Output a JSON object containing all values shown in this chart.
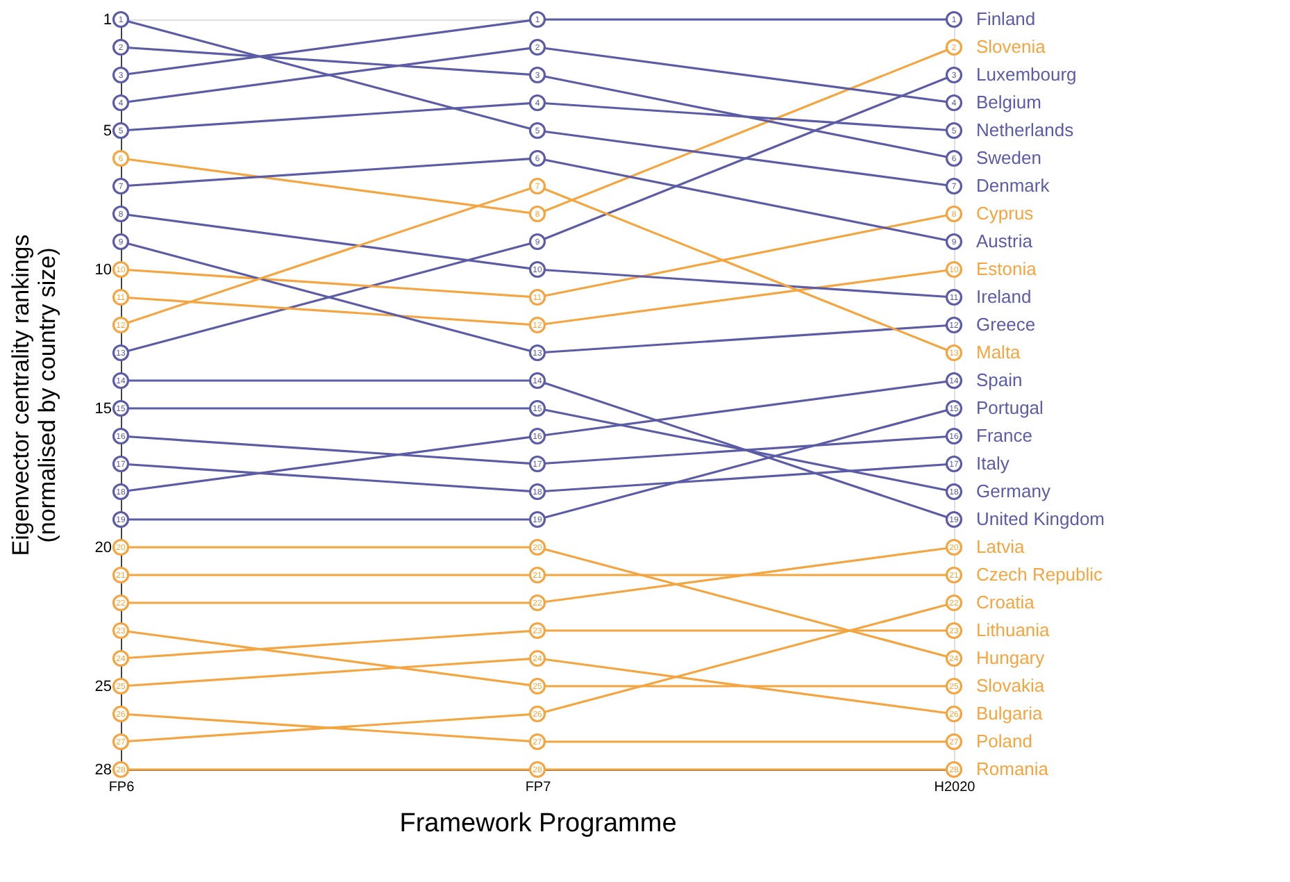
{
  "chart_data": {
    "type": "line",
    "xlabel": "Framework Programme",
    "ylabel": "Eigenvector centrality rankings\n(normalised by country size)",
    "categories": [
      "FP6",
      "FP7",
      "H2020"
    ],
    "ylim": [
      28,
      1
    ],
    "yticks": [
      1,
      5,
      10,
      15,
      20,
      25,
      28
    ],
    "grid": false,
    "legend": false,
    "marker": "circle",
    "line_style": "solid",
    "data_labels": true,
    "series": [
      {
        "name": "Finland",
        "color": "#5b5ba6",
        "values": [
          3,
          1,
          1
        ]
      },
      {
        "name": "Slovenia",
        "color": "#f5a540",
        "values": [
          6,
          8,
          2
        ]
      },
      {
        "name": "Luxembourg",
        "color": "#5b5ba6",
        "values": [
          13,
          9,
          3
        ]
      },
      {
        "name": "Belgium",
        "color": "#5b5ba6",
        "values": [
          4,
          2,
          4
        ]
      },
      {
        "name": "Netherlands",
        "color": "#5b5ba6",
        "values": [
          5,
          4,
          5
        ]
      },
      {
        "name": "Sweden",
        "color": "#5b5ba6",
        "values": [
          2,
          3,
          6
        ]
      },
      {
        "name": "Denmark",
        "color": "#5b5ba6",
        "values": [
          1,
          5,
          7
        ]
      },
      {
        "name": "Cyprus",
        "color": "#f5a540",
        "values": [
          10,
          11,
          8
        ]
      },
      {
        "name": "Austria",
        "color": "#5b5ba6",
        "values": [
          7,
          6,
          9
        ]
      },
      {
        "name": "Estonia",
        "color": "#f5a540",
        "values": [
          11,
          12,
          10
        ]
      },
      {
        "name": "Ireland",
        "color": "#5b5ba6",
        "values": [
          8,
          10,
          11
        ]
      },
      {
        "name": "Greece",
        "color": "#5b5ba6",
        "values": [
          9,
          13,
          12
        ]
      },
      {
        "name": "Malta",
        "color": "#f5a540",
        "values": [
          12,
          7,
          13
        ]
      },
      {
        "name": "Spain",
        "color": "#5b5ba6",
        "values": [
          18,
          16,
          14
        ]
      },
      {
        "name": "Portugal",
        "color": "#5b5ba6",
        "values": [
          19,
          19,
          15
        ]
      },
      {
        "name": "France",
        "color": "#5b5ba6",
        "values": [
          16,
          17,
          16
        ]
      },
      {
        "name": "Italy",
        "color": "#5b5ba6",
        "values": [
          17,
          18,
          17
        ]
      },
      {
        "name": "Germany",
        "color": "#5b5ba6",
        "values": [
          15,
          15,
          18
        ]
      },
      {
        "name": "United Kingdom",
        "color": "#5b5ba6",
        "values": [
          14,
          14,
          19
        ]
      },
      {
        "name": "Latvia",
        "color": "#f5a540",
        "values": [
          22,
          22,
          20
        ]
      },
      {
        "name": "Czech Republic",
        "color": "#f5a540",
        "values": [
          21,
          21,
          21
        ]
      },
      {
        "name": "Croatia",
        "color": "#f5a540",
        "values": [
          27,
          26,
          22
        ]
      },
      {
        "name": "Lithuania",
        "color": "#f5a540",
        "values": [
          24,
          23,
          23
        ]
      },
      {
        "name": "Hungary",
        "color": "#f5a540",
        "values": [
          20,
          20,
          24
        ]
      },
      {
        "name": "Slovakia",
        "color": "#f5a540",
        "values": [
          23,
          25,
          25
        ]
      },
      {
        "name": "Bulgaria",
        "color": "#f5a540",
        "values": [
          25,
          24,
          26
        ]
      },
      {
        "name": "Poland",
        "color": "#f5a540",
        "values": [
          26,
          27,
          27
        ]
      },
      {
        "name": "Romania",
        "color": "#f5a540",
        "values": [
          28,
          28,
          28
        ]
      }
    ]
  }
}
